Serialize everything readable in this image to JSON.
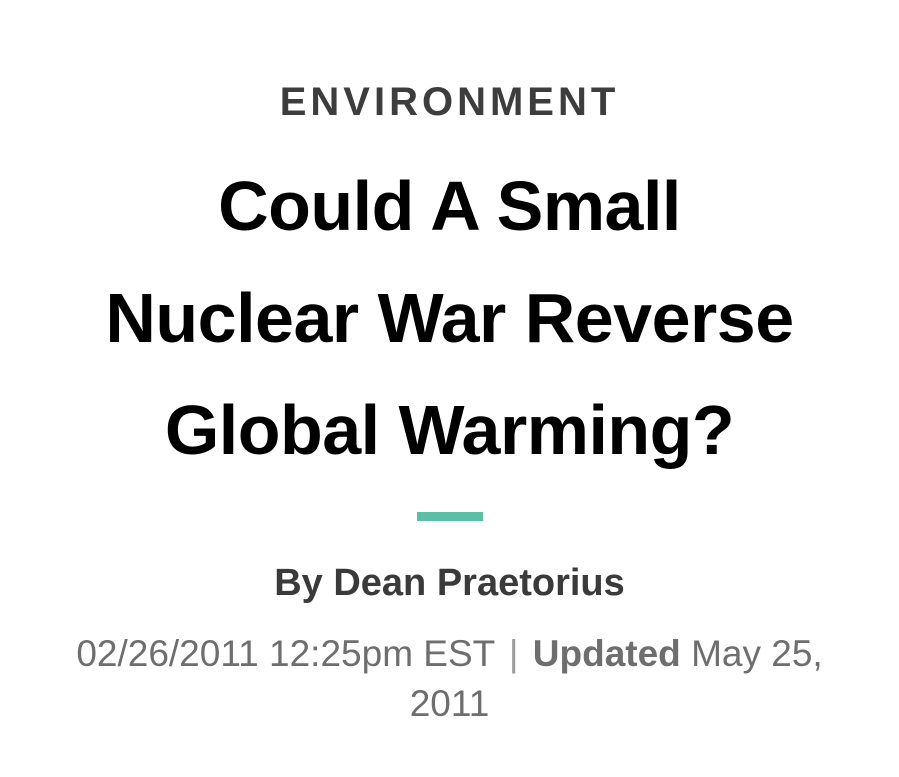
{
  "article": {
    "section": "ENVIRONMENT",
    "headline_lines": [
      "Could A Small",
      "Nuclear War Reverse",
      "Global Warming?"
    ],
    "byline": "By Dean Praetorius",
    "published": "02/26/2011 12:25pm EST",
    "separator": "|",
    "updated_label": "Updated",
    "updated_date_part1": "May 25,",
    "updated_date_part2": "2011"
  },
  "colors": {
    "accent_rule": "#5bbfa6",
    "headline": "#000000",
    "section": "#3d3d3d",
    "byline": "#3a3a3a",
    "dateline": "#6e6e6e"
  }
}
